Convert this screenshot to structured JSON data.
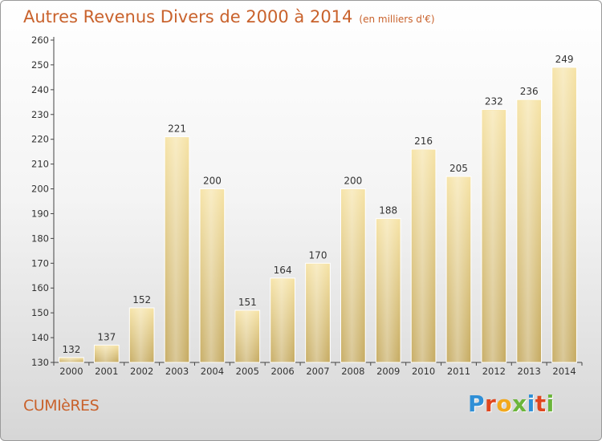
{
  "header": {
    "title": "Autres Revenus Divers de 2000 à 2014",
    "subtitle": "(en milliers d'€)"
  },
  "footer": {
    "place": "CUMIèRES",
    "logo": "Proxiti",
    "logo_colors": [
      "#2f8fd6",
      "#e0461f",
      "#f2a81c",
      "#6bb53a",
      "#2f8fd6",
      "#e0461f",
      "#6bb53a"
    ]
  },
  "chart_data": {
    "type": "bar",
    "title": "Autres Revenus Divers de 2000 à 2014",
    "subtitle": "(en milliers d'€)",
    "categories": [
      "2000",
      "2001",
      "2002",
      "2003",
      "2004",
      "2005",
      "2006",
      "2007",
      "2008",
      "2009",
      "2010",
      "2011",
      "2012",
      "2013",
      "2014"
    ],
    "values": [
      132,
      137,
      152,
      221,
      200,
      151,
      164,
      170,
      200,
      188,
      216,
      205,
      232,
      236,
      249
    ],
    "ylim": [
      130,
      260
    ],
    "yticks": [
      130,
      140,
      150,
      160,
      170,
      180,
      190,
      200,
      210,
      220,
      230,
      240,
      250,
      260
    ],
    "grid": false,
    "bar_color_top": "#f6e3a6",
    "bar_color_bottom": "#c6ab62"
  }
}
